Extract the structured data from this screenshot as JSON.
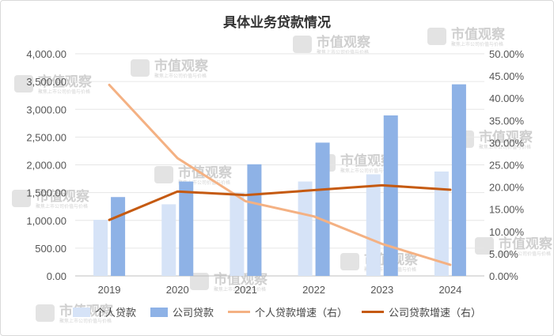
{
  "watermark": {
    "text": "市值观察",
    "subtext": "聚焦上市公司价值与价格"
  },
  "chart_data": {
    "type": "bar",
    "title": "具体业务贷款情况",
    "categories": [
      "2019",
      "2020",
      "2021",
      "2022",
      "2023",
      "2024"
    ],
    "y_left": {
      "min": 0,
      "max": 4000,
      "step": 500,
      "ticks": [
        "0.00",
        "500.00",
        "1,000.00",
        "1,500.00",
        "2,000.00",
        "2,500.00",
        "3,000.00",
        "3,500.00",
        "4,000.00"
      ]
    },
    "y_right": {
      "min": 0,
      "max": 0.5,
      "step": 0.05,
      "ticks": [
        "0.00%",
        "5.00%",
        "10.00%",
        "15.00%",
        "20.00%",
        "25.00%",
        "30.00%",
        "35.00%",
        "40.00%",
        "45.00%",
        "50.00%"
      ]
    },
    "grid": true,
    "legend_position": "bottom",
    "series": [
      {
        "name": "个人贷款",
        "kind": "bar",
        "axis": "left",
        "color": "#d6e3f7",
        "values": [
          1010,
          1290,
          1500,
          1700,
          1830,
          1880
        ]
      },
      {
        "name": "公司贷款",
        "kind": "bar",
        "axis": "left",
        "color": "#8eb2e6",
        "values": [
          1420,
          1700,
          2010,
          2400,
          2890,
          3450
        ]
      },
      {
        "name": "个人贷款增速（右）",
        "kind": "line",
        "axis": "right",
        "color": "#f4b183",
        "values": [
          0.43,
          0.265,
          0.168,
          0.134,
          0.072,
          0.025
        ]
      },
      {
        "name": "公司贷款增速（右）",
        "kind": "line",
        "axis": "right",
        "color": "#c55a11",
        "values": [
          0.126,
          0.19,
          0.182,
          0.193,
          0.204,
          0.194
        ]
      }
    ]
  }
}
